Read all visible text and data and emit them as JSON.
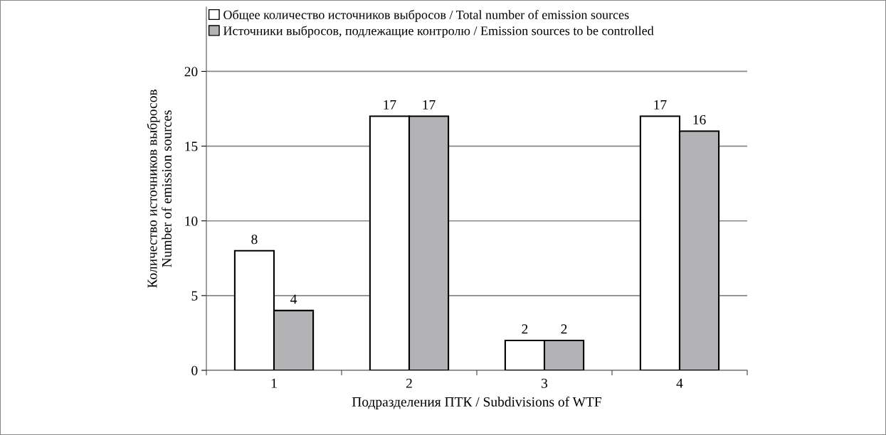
{
  "chart_data": {
    "type": "bar",
    "xlabel": "Подразделения ПТК / Subdivisions of WTF",
    "ylabel": "Количество источников выбросов\nNumber of emission sources",
    "categories": [
      "1",
      "2",
      "3",
      "4"
    ],
    "series": [
      {
        "name": "Общее количество источников выбросов / Total number of emission sources",
        "color": "#ffffff",
        "values": [
          8,
          17,
          2,
          17
        ]
      },
      {
        "name": "Источники выбросов, подлежащие контролю / Emission sources to be controlled",
        "color": "#b3b3b5",
        "values": [
          4,
          17,
          2,
          16
        ]
      }
    ],
    "ylim": [
      0,
      24.3
    ],
    "yticks": [
      0,
      5,
      10,
      15,
      20
    ],
    "grid": "y",
    "legend": "top left",
    "data_labels": true
  }
}
